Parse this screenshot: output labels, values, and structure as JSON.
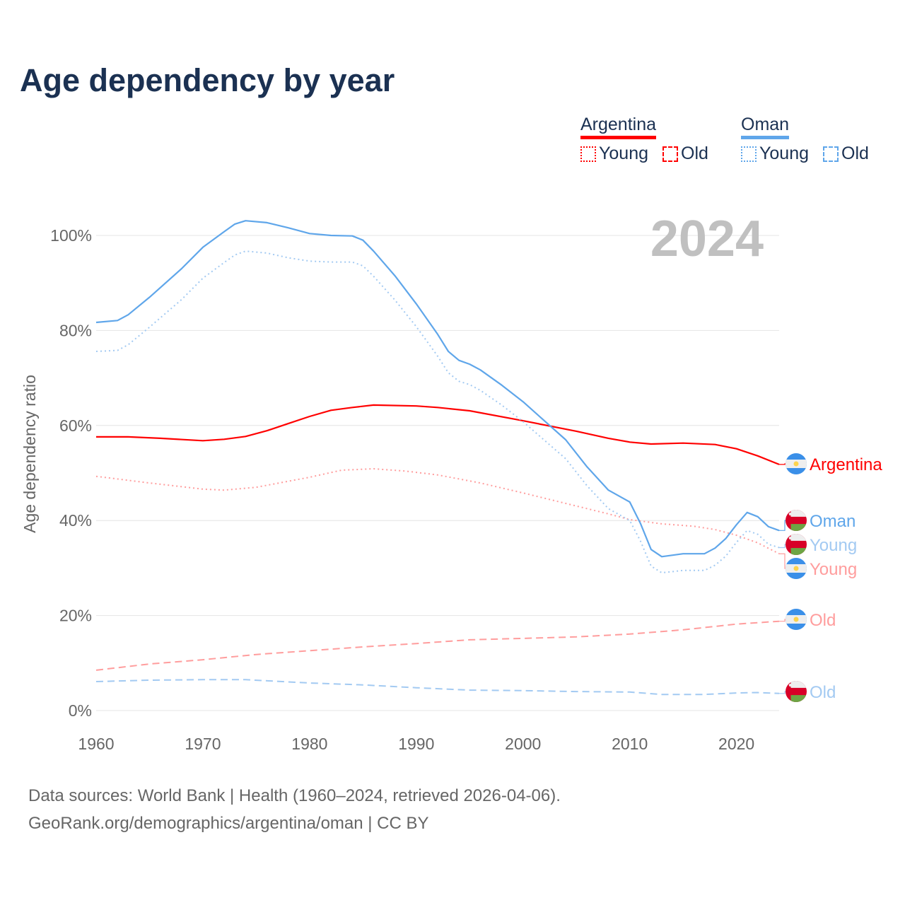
{
  "title": "Age dependency by year",
  "year_watermark": "2024",
  "legend": {
    "groups": [
      {
        "name": "Argentina",
        "color": "#ff0000",
        "items": [
          "Young",
          "Old"
        ]
      },
      {
        "name": "Oman",
        "color": "#5fa6ea",
        "items": [
          "Young",
          "Old"
        ]
      }
    ]
  },
  "source": {
    "line1": "Data sources: World Bank | Health (1960–2024, retrieved 2026-04-06).",
    "line2": "GeoRank.org/demographics/argentina/oman | CC BY"
  },
  "chart_data": {
    "type": "line",
    "title": "Age dependency by year",
    "xlabel": "",
    "ylabel": "Age dependency ratio",
    "xlim": [
      1960,
      2024
    ],
    "ylim": [
      0,
      105
    ],
    "xticks": [
      1960,
      1970,
      1980,
      1990,
      2000,
      2010,
      2020
    ],
    "yticks": [
      0,
      20,
      40,
      60,
      80,
      100
    ],
    "ytick_labels": [
      "0%",
      "20%",
      "40%",
      "60%",
      "80%",
      "100%"
    ],
    "grid": true,
    "series": [
      {
        "name": "Argentina",
        "label": "Argentina",
        "country": "argentina",
        "kind": "total",
        "color": "#ff0000",
        "points": [
          [
            1960,
            57.6
          ],
          [
            1963,
            57.6
          ],
          [
            1966,
            57.3
          ],
          [
            1970,
            56.8
          ],
          [
            1972,
            57.1
          ],
          [
            1974,
            57.7
          ],
          [
            1976,
            58.9
          ],
          [
            1978,
            60.4
          ],
          [
            1980,
            61.9
          ],
          [
            1982,
            63.2
          ],
          [
            1984,
            63.8
          ],
          [
            1986,
            64.3
          ],
          [
            1990,
            64.1
          ],
          [
            1992,
            63.8
          ],
          [
            1995,
            63.1
          ],
          [
            2000,
            61
          ],
          [
            2005,
            58.8
          ],
          [
            2008,
            57.3
          ],
          [
            2010,
            56.5
          ],
          [
            2012,
            56.1
          ],
          [
            2015,
            56.3
          ],
          [
            2018,
            56
          ],
          [
            2020,
            55.1
          ],
          [
            2022,
            53.6
          ],
          [
            2024,
            51.8
          ]
        ]
      },
      {
        "name": "Argentina Young",
        "label": "Young",
        "country": "argentina",
        "kind": "young",
        "color": "#ff9d9d",
        "points": [
          [
            1960,
            49.3
          ],
          [
            1965,
            47.9
          ],
          [
            1970,
            46.6
          ],
          [
            1972,
            46.4
          ],
          [
            1975,
            47
          ],
          [
            1980,
            49.1
          ],
          [
            1983,
            50.6
          ],
          [
            1986,
            50.9
          ],
          [
            1989,
            50.4
          ],
          [
            1992,
            49.6
          ],
          [
            1996,
            47.9
          ],
          [
            2000,
            45.8
          ],
          [
            2004,
            43.6
          ],
          [
            2008,
            41.4
          ],
          [
            2010,
            40.2
          ],
          [
            2013,
            39.3
          ],
          [
            2016,
            38.8
          ],
          [
            2018,
            38.1
          ],
          [
            2020,
            36.9
          ],
          [
            2022,
            35.3
          ],
          [
            2024,
            33
          ]
        ]
      },
      {
        "name": "Argentina Old",
        "label": "Old",
        "country": "argentina",
        "kind": "old",
        "color": "#ff9d9d",
        "points": [
          [
            1960,
            8.5
          ],
          [
            1965,
            9.8
          ],
          [
            1970,
            10.7
          ],
          [
            1975,
            11.8
          ],
          [
            1980,
            12.6
          ],
          [
            1985,
            13.4
          ],
          [
            1990,
            14.1
          ],
          [
            1995,
            14.9
          ],
          [
            2000,
            15.2
          ],
          [
            2005,
            15.5
          ],
          [
            2010,
            16.1
          ],
          [
            2015,
            17
          ],
          [
            2020,
            18.2
          ],
          [
            2024,
            18.8
          ]
        ]
      },
      {
        "name": "Oman",
        "label": "Oman",
        "country": "oman",
        "kind": "total",
        "color": "#5fa6ea",
        "points": [
          [
            1960,
            81.7
          ],
          [
            1962,
            82.1
          ],
          [
            1963,
            83.3
          ],
          [
            1965,
            87
          ],
          [
            1968,
            93
          ],
          [
            1970,
            97.5
          ],
          [
            1972,
            100.8
          ],
          [
            1973,
            102.4
          ],
          [
            1974,
            103.1
          ],
          [
            1976,
            102.7
          ],
          [
            1978,
            101.6
          ],
          [
            1980,
            100.4
          ],
          [
            1982,
            100
          ],
          [
            1984,
            99.9
          ],
          [
            1985,
            99
          ],
          [
            1986,
            96.7
          ],
          [
            1988,
            91.5
          ],
          [
            1990,
            85.6
          ],
          [
            1992,
            79.2
          ],
          [
            1993,
            75.6
          ],
          [
            1994,
            73.7
          ],
          [
            1995,
            72.9
          ],
          [
            1996,
            71.7
          ],
          [
            1998,
            68.5
          ],
          [
            2000,
            65
          ],
          [
            2002,
            61
          ],
          [
            2004,
            57
          ],
          [
            2006,
            51.3
          ],
          [
            2008,
            46.4
          ],
          [
            2010,
            43.9
          ],
          [
            2011,
            39.4
          ],
          [
            2012,
            33.9
          ],
          [
            2013,
            32.4
          ],
          [
            2015,
            33
          ],
          [
            2017,
            33
          ],
          [
            2018,
            34.2
          ],
          [
            2019,
            36.2
          ],
          [
            2020,
            39.1
          ],
          [
            2021,
            41.7
          ],
          [
            2022,
            40.8
          ],
          [
            2023,
            38.7
          ],
          [
            2024,
            37.9
          ]
        ]
      },
      {
        "name": "Oman Young",
        "label": "Young",
        "country": "oman",
        "kind": "young",
        "color": "#a3caf2",
        "points": [
          [
            1960,
            75.6
          ],
          [
            1962,
            75.8
          ],
          [
            1963,
            77
          ],
          [
            1965,
            80.7
          ],
          [
            1968,
            86.5
          ],
          [
            1970,
            91
          ],
          [
            1972,
            94.3
          ],
          [
            1973,
            95.9
          ],
          [
            1974,
            96.7
          ],
          [
            1976,
            96.3
          ],
          [
            1978,
            95.3
          ],
          [
            1980,
            94.6
          ],
          [
            1982,
            94.4
          ],
          [
            1984,
            94.4
          ],
          [
            1985,
            93.6
          ],
          [
            1986,
            91.4
          ],
          [
            1988,
            86.4
          ],
          [
            1990,
            80.8
          ],
          [
            1992,
            74.6
          ],
          [
            1993,
            71.1
          ],
          [
            1994,
            69.3
          ],
          [
            1995,
            68.6
          ],
          [
            1996,
            67.4
          ],
          [
            1998,
            64.3
          ],
          [
            2000,
            60.8
          ],
          [
            2002,
            56.9
          ],
          [
            2004,
            53
          ],
          [
            2006,
            47.3
          ],
          [
            2008,
            42.5
          ],
          [
            2010,
            40
          ],
          [
            2011,
            35.7
          ],
          [
            2012,
            30.4
          ],
          [
            2013,
            29
          ],
          [
            2015,
            29.5
          ],
          [
            2017,
            29.5
          ],
          [
            2018,
            30.6
          ],
          [
            2019,
            32.5
          ],
          [
            2020,
            35.4
          ],
          [
            2021,
            37.9
          ],
          [
            2022,
            37.1
          ],
          [
            2023,
            35
          ],
          [
            2024,
            34.3
          ]
        ]
      },
      {
        "name": "Oman Old",
        "label": "Old",
        "country": "oman",
        "kind": "old",
        "color": "#a3caf2",
        "points": [
          [
            1960,
            6.1
          ],
          [
            1965,
            6.4
          ],
          [
            1970,
            6.5
          ],
          [
            1974,
            6.5
          ],
          [
            1980,
            5.8
          ],
          [
            1985,
            5.4
          ],
          [
            1990,
            4.8
          ],
          [
            1995,
            4.3
          ],
          [
            2000,
            4.2
          ],
          [
            2005,
            4.0
          ],
          [
            2010,
            3.9
          ],
          [
            2013,
            3.4
          ],
          [
            2017,
            3.4
          ],
          [
            2020,
            3.7
          ],
          [
            2022,
            3.8
          ],
          [
            2024,
            3.6
          ]
        ]
      }
    ]
  }
}
